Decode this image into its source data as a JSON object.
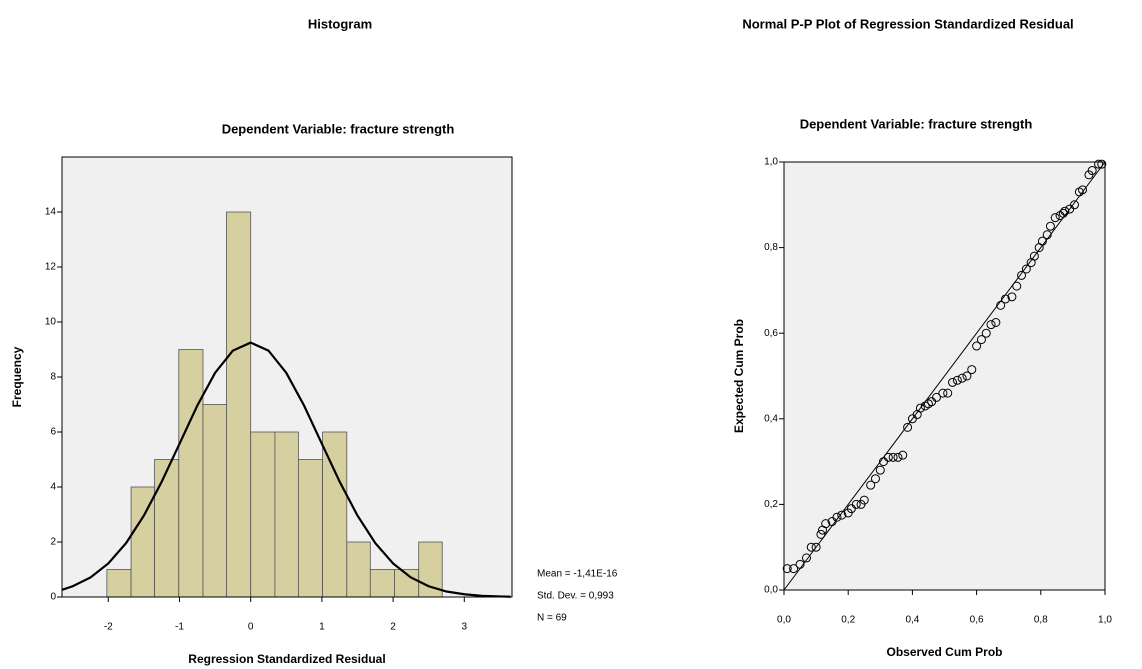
{
  "chart_data": [
    {
      "type": "histogram",
      "title": "Histogram",
      "subtitle": "Dependent Variable: fracture strength",
      "xlabel": "Regression Standardized Residual",
      "ylabel": "Frequency",
      "bins": [
        -2.02,
        -1.68,
        -1.35,
        -1.01,
        -0.67,
        -0.34,
        0,
        0.34,
        0.67,
        1.01,
        1.35,
        1.68,
        2.02,
        2.36,
        2.69
      ],
      "values": [
        1,
        4,
        5,
        9,
        7,
        14,
        6,
        6,
        5,
        6,
        2,
        1,
        1,
        2
      ],
      "color": "#d6cfa0",
      "curve": {
        "x": [
          -2.65,
          -2.5,
          -2.25,
          -2,
          -1.75,
          -1.5,
          -1.25,
          -1,
          -0.75,
          -0.5,
          -0.25,
          0,
          0.25,
          0.5,
          0.75,
          1,
          1.25,
          1.5,
          1.75,
          2,
          2.25,
          2.5,
          2.75,
          3,
          3.25,
          3.5,
          3.65
        ],
        "values": [
          0.26,
          0.39,
          0.71,
          1.22,
          1.96,
          2.96,
          4.19,
          5.57,
          6.96,
          8.15,
          8.96,
          9.25,
          8.96,
          8.15,
          6.96,
          5.57,
          4.19,
          2.96,
          1.96,
          1.22,
          0.71,
          0.39,
          0.2,
          0.1,
          0.04,
          0.02,
          0.01
        ]
      },
      "annotations": [
        "Mean = -1,41E-16",
        "Std. Dev. = 0,993",
        "N = 69"
      ],
      "xlim": [
        -2.65,
        3.67
      ],
      "ylim": [
        0,
        16
      ],
      "xticks": [
        -2,
        -1,
        0,
        1,
        2,
        3
      ],
      "yticks": [
        0,
        2,
        4,
        6,
        8,
        10,
        12,
        14
      ]
    },
    {
      "type": "scatter",
      "title": "Normal P-P Plot of Regression Standardized Residual",
      "subtitle": "Dependent Variable: fracture strength",
      "xlabel": "Observed Cum Prob",
      "ylabel": "Expected Cum Prob",
      "x": [
        0.01,
        0.03,
        0.05,
        0.07,
        0.085,
        0.1,
        0.115,
        0.12,
        0.13,
        0.15,
        0.165,
        0.18,
        0.2,
        0.21,
        0.225,
        0.24,
        0.25,
        0.27,
        0.285,
        0.3,
        0.31,
        0.325,
        0.34,
        0.355,
        0.37,
        0.385,
        0.4,
        0.415,
        0.425,
        0.44,
        0.45,
        0.46,
        0.475,
        0.495,
        0.51,
        0.525,
        0.54,
        0.555,
        0.57,
        0.585,
        0.6,
        0.615,
        0.63,
        0.645,
        0.66,
        0.675,
        0.69,
        0.71,
        0.725,
        0.74,
        0.755,
        0.77,
        0.78,
        0.795,
        0.805,
        0.82,
        0.83,
        0.845,
        0.86,
        0.87,
        0.875,
        0.89,
        0.905,
        0.92,
        0.93,
        0.95,
        0.96,
        0.98,
        0.99
      ],
      "values": [
        0.05,
        0.05,
        0.06,
        0.075,
        0.1,
        0.1,
        0.13,
        0.14,
        0.155,
        0.16,
        0.17,
        0.175,
        0.18,
        0.19,
        0.2,
        0.2,
        0.21,
        0.245,
        0.26,
        0.28,
        0.3,
        0.31,
        0.31,
        0.31,
        0.315,
        0.38,
        0.4,
        0.41,
        0.425,
        0.43,
        0.435,
        0.44,
        0.45,
        0.46,
        0.46,
        0.485,
        0.49,
        0.495,
        0.5,
        0.515,
        0.57,
        0.585,
        0.6,
        0.62,
        0.625,
        0.665,
        0.68,
        0.685,
        0.71,
        0.735,
        0.75,
        0.765,
        0.78,
        0.8,
        0.815,
        0.83,
        0.85,
        0.87,
        0.875,
        0.88,
        0.885,
        0.89,
        0.9,
        0.93,
        0.935,
        0.97,
        0.98,
        0.995,
        0.995
      ],
      "xlim": [
        0,
        1
      ],
      "ylim": [
        0,
        1
      ],
      "xticks": [
        {
          "value": 0,
          "label": "0,0"
        },
        {
          "value": 0.2,
          "label": "0,2"
        },
        {
          "value": 0.4,
          "label": "0,4"
        },
        {
          "value": 0.6,
          "label": "0,6"
        },
        {
          "value": 0.8,
          "label": "0,8"
        },
        {
          "value": 1,
          "label": "1,0"
        }
      ],
      "yticks": [
        {
          "value": 0,
          "label": "0,0"
        },
        {
          "value": 0.2,
          "label": "0,2"
        },
        {
          "value": 0.4,
          "label": "0,4"
        },
        {
          "value": 0.6,
          "label": "0,6"
        },
        {
          "value": 0.8,
          "label": "0,8"
        },
        {
          "value": 1,
          "label": "1,0"
        }
      ]
    }
  ]
}
